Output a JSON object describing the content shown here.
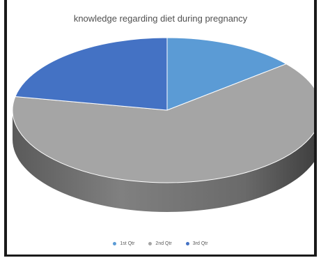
{
  "chart_data": {
    "type": "pie",
    "style": "3d",
    "title": "knowledge regarding diet during pregnancy",
    "categories": [
      "1st Qtr",
      "2nd Qtr",
      "3rd Qtr"
    ],
    "values": [
      14,
      64,
      22
    ],
    "colors": [
      "#5b9bd5",
      "#a5a5a5",
      "#4472c4"
    ],
    "side_color": "#6a6a6a",
    "legend_position": "bottom"
  }
}
